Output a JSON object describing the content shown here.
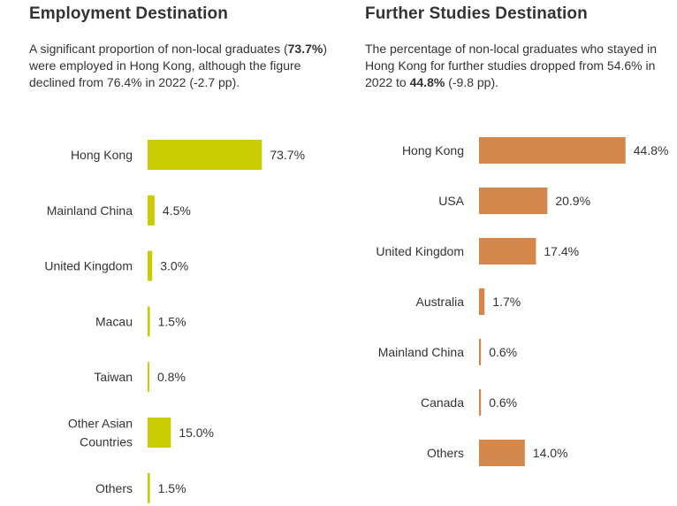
{
  "left": {
    "title": "Employment Destination",
    "desc_parts": [
      {
        "t": "A significant proportion of non-local graduates (",
        "b": false
      },
      {
        "t": "73.7%",
        "b": true
      },
      {
        "t": ") were employed in Hong Kong, although the figure declined from 76.4% in 2022 (-2.7 pp).",
        "b": false
      }
    ]
  },
  "right": {
    "title": "Further Studies Destination",
    "desc_parts": [
      {
        "t": "The percentage of non-local graduates who stayed in Hong Kong for further studies dropped from 54.6% in 2022 to ",
        "b": false
      },
      {
        "t": "44.8%",
        "b": true
      },
      {
        "t": " (-9.8 pp).",
        "b": false
      }
    ]
  },
  "chart_data": [
    {
      "type": "bar",
      "orientation": "horizontal",
      "color": "#c8cc00",
      "categories": [
        "Hong Kong",
        "Mainland China",
        "United Kingdom",
        "Macau",
        "Taiwan",
        "Other Asian Countries",
        "Others"
      ],
      "category_lines": [
        [
          "Hong Kong"
        ],
        [
          "Mainland China"
        ],
        [
          "United Kingdom"
        ],
        [
          "Macau"
        ],
        [
          "Taiwan"
        ],
        [
          "Other Asian",
          "Countries"
        ],
        [
          "Others"
        ]
      ],
      "values": [
        73.7,
        4.5,
        3.0,
        1.5,
        0.8,
        15.0,
        1.5
      ],
      "value_labels": [
        "73.7%",
        "4.5%",
        "3.0%",
        "1.5%",
        "0.8%",
        "15.0%",
        "1.5%"
      ],
      "unit": "%"
    },
    {
      "type": "bar",
      "orientation": "horizontal",
      "color": "#d4874a",
      "categories": [
        "Hong Kong",
        "USA",
        "United Kingdom",
        "Australia",
        "Mainland China",
        "Canada",
        "Others"
      ],
      "category_lines": [
        [
          "Hong Kong"
        ],
        [
          "USA"
        ],
        [
          "United Kingdom"
        ],
        [
          "Australia"
        ],
        [
          "Mainland China"
        ],
        [
          "Canada"
        ],
        [
          "Others"
        ]
      ],
      "values": [
        44.8,
        20.9,
        17.4,
        1.7,
        0.6,
        0.6,
        14.0
      ],
      "value_labels": [
        "44.8%",
        "20.9%",
        "17.4%",
        "1.7%",
        "0.6%",
        "0.6%",
        "14.0%"
      ],
      "unit": "%"
    }
  ]
}
